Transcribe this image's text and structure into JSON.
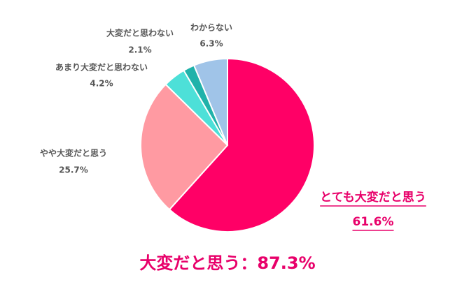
{
  "chart_data": {
    "type": "pie",
    "categories": [
      "とても大変だと思う",
      "やや大変だと思う",
      "あまり大変だと思わない",
      "大変だと思わない",
      "わからない"
    ],
    "values": [
      61.6,
      25.7,
      4.2,
      2.1,
      6.3
    ],
    "value_labels": [
      "61.6%",
      "25.7%",
      "4.2%",
      "2.1%",
      "6.3%"
    ],
    "colors": [
      "#ff0066",
      "#ff9aa2",
      "#4de0d8",
      "#20b2aa",
      "#a0c4e8"
    ],
    "annotation": "大変だと思う：87.3%"
  }
}
